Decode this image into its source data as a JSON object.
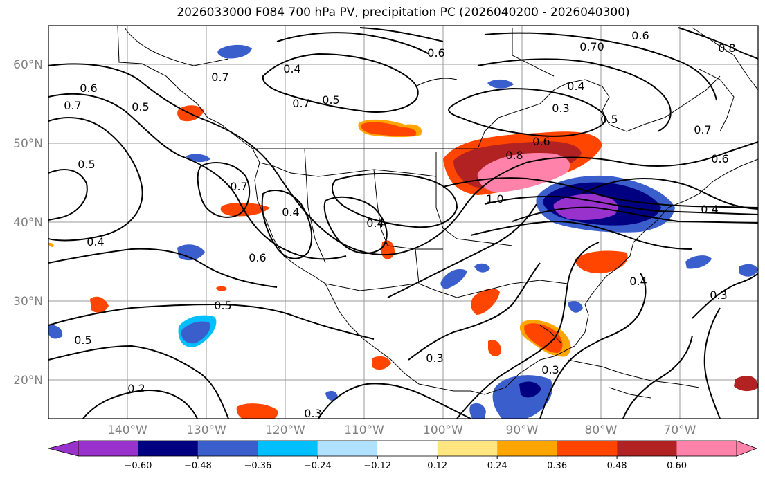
{
  "title": "2026033000 F084 700 hPa PV, precipitation PC (2026040200 - 2026040300)",
  "lat_labels": [
    "60°N",
    "50°N",
    "40°N",
    "30°N",
    "20°N"
  ],
  "lon_labels": [
    "140°W",
    "130°W",
    "120°W",
    "110°W",
    "100°W",
    "90°W",
    "80°W",
    "70°W"
  ],
  "colorbar": {
    "colors": [
      "#9932cc",
      "#000080",
      "#3a5fcd",
      "#00bfff",
      "#b0e2ff",
      "#ffffff",
      "#ffe680",
      "#ffa500",
      "#ff4500",
      "#b22222",
      "#ff82ab"
    ],
    "ticks": [
      "−0.60",
      "−0.48",
      "−0.36",
      "−0.24",
      "−0.12",
      "0.12",
      "0.24",
      "0.36",
      "0.48",
      "0.60"
    ]
  },
  "contour_labels": [
    "0.6",
    "0.7",
    "0.5",
    "0.7",
    "0.4",
    "0.5",
    "0.7",
    "0.6",
    "0.70",
    "0.6",
    "0.8",
    "0.4",
    "0.3",
    "0.5",
    "0.7",
    "0.5",
    "0.4",
    "0.6",
    "0.8",
    "1.0",
    "0.4",
    "0.4",
    "0.4",
    "0.6",
    "0.5",
    "0.5",
    "0.2",
    "0.3",
    "0.3",
    "0.3",
    "0.4",
    "0.3",
    "0.6",
    "0.7"
  ]
}
